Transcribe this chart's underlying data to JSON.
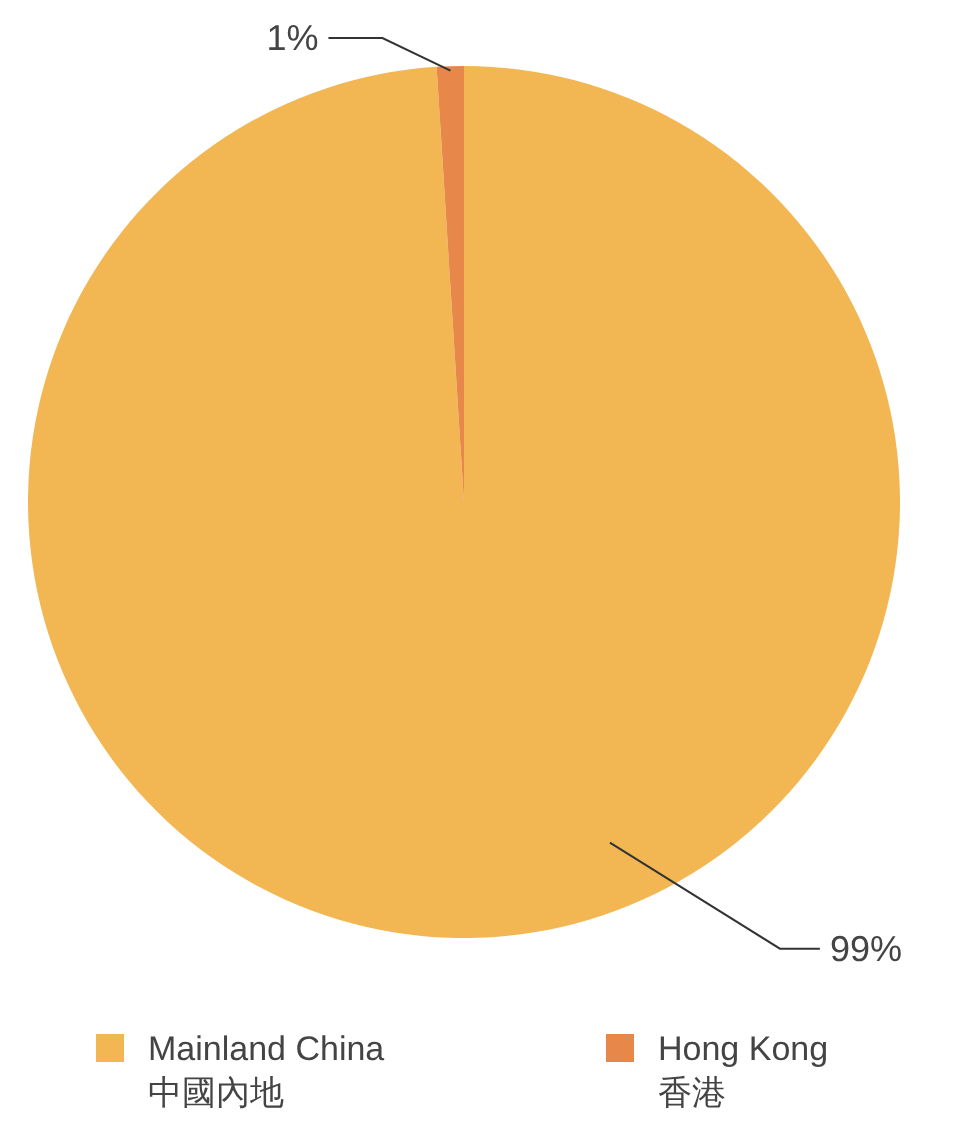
{
  "chart_data": {
    "type": "pie",
    "categories": [
      "Mainland China\n中國內地",
      "Hong Kong\n香港"
    ],
    "values": [
      99,
      1
    ],
    "colors": [
      "#f2b652",
      "#e8874a"
    ],
    "value_labels": [
      "99%",
      "1%"
    ],
    "legend": "bottom"
  }
}
